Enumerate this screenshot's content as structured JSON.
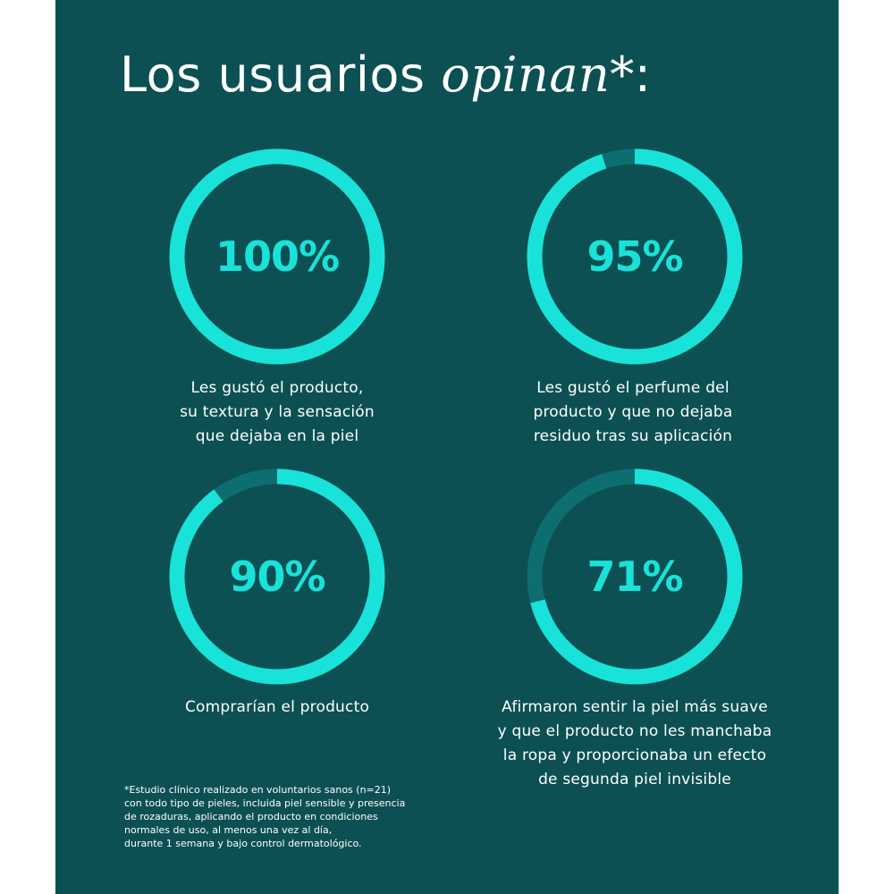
{
  "title": {
    "plain": "Los usuarios ",
    "emphasis": "opinan*",
    "suffix": ":"
  },
  "colors": {
    "background": "#0c5054",
    "ring_fill": "#19e3d9",
    "ring_track": "#0e6d6f",
    "text": "#ffffff"
  },
  "chart_data": {
    "type": "donut",
    "title": "Los usuarios opinan*:",
    "items": [
      {
        "value": 100,
        "label": "100%",
        "caption": [
          "Les gustó el producto,",
          "su textura y la sensación",
          "que dejaba en la piel"
        ]
      },
      {
        "value": 95,
        "label": "95%",
        "caption": [
          "Les gustó el perfume del",
          "producto y que no dejaba",
          "residuo tras su aplicación"
        ]
      },
      {
        "value": 90,
        "label": "90%",
        "caption": [
          "Comprarían el producto"
        ]
      },
      {
        "value": 71,
        "label": "71%",
        "caption": [
          "Afirmaron sentir la piel más suave",
          "y que el producto no les manchaba",
          "la ropa y proporcionaba un efecto",
          "de segunda piel invisible"
        ]
      }
    ]
  },
  "footnote": [
    "*Estudio clínico realizado en voluntarios sanos (n=21)",
    "con todo tipo de pieles, incluida piel sensible y presencia",
    "de rozaduras, aplicando el producto en condiciones",
    "normales de uso, al menos una vez al día,",
    "durante 1 semana y bajo control dermatológico."
  ]
}
